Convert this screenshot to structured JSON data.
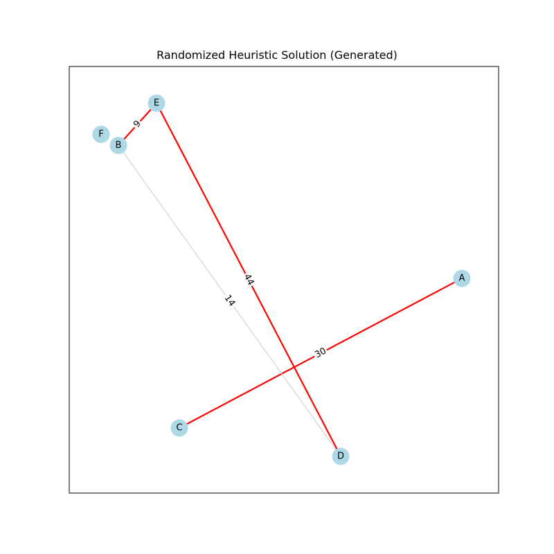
{
  "title": "Randomized Heuristic Solution (Generated)",
  "colors": {
    "node_fill": "#add8e6",
    "solution_edge": "#ff0000",
    "other_edge": "#d3d3d3",
    "frame": "#000000"
  },
  "nodes": [
    {
      "id": "A"
    },
    {
      "id": "B"
    },
    {
      "id": "C"
    },
    {
      "id": "D"
    },
    {
      "id": "E"
    },
    {
      "id": "F"
    }
  ],
  "edges": [
    {
      "from": "B",
      "to": "E",
      "weight": "9",
      "in_solution": true
    },
    {
      "from": "E",
      "to": "D",
      "weight": "44",
      "in_solution": true
    },
    {
      "from": "A",
      "to": "C",
      "weight": "30",
      "in_solution": true
    },
    {
      "from": "B",
      "to": "D",
      "weight": "14",
      "in_solution": false
    }
  ]
}
